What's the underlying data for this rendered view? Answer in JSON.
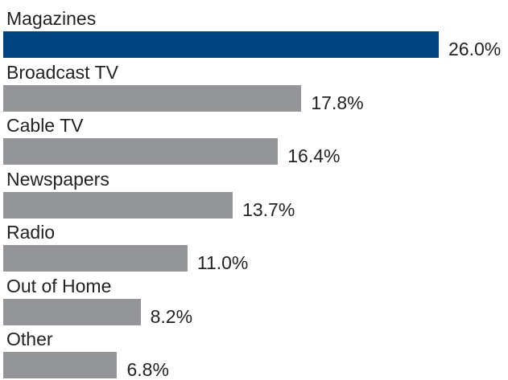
{
  "chart_data": {
    "type": "bar",
    "orientation": "horizontal",
    "categories": [
      "Magazines",
      "Broadcast TV",
      "Cable TV",
      "Newspapers",
      "Radio",
      "Out of Home",
      "Other"
    ],
    "values": [
      26.0,
      17.8,
      16.4,
      13.7,
      11.0,
      8.2,
      6.8
    ],
    "value_labels": [
      "26.0%",
      "17.8%",
      "16.4%",
      "13.7%",
      "11.0%",
      "8.2%",
      "6.8%"
    ],
    "value_unit": "%",
    "highlight_index": 0,
    "colors": {
      "highlight": "#004480",
      "default": "#939598"
    },
    "xlim": [
      0,
      26.0
    ],
    "grid": false,
    "legend": "none"
  }
}
